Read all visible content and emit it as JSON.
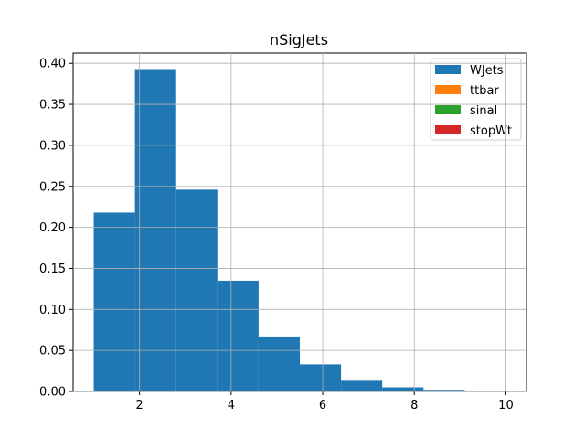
{
  "chart_data": {
    "type": "bar",
    "title": "nSigJets",
    "xlabel": "",
    "ylabel": "",
    "xlim": [
      0.55,
      10.45
    ],
    "ylim": [
      0,
      0.4125
    ],
    "grid": true,
    "legend_position": "top-right",
    "bin_edges": [
      1.0,
      1.9,
      2.8,
      3.7,
      4.6,
      5.5,
      6.4,
      7.3,
      8.2,
      9.1,
      10.0
    ],
    "xticks": [
      2,
      4,
      6,
      8,
      10
    ],
    "yticks": [
      0.0,
      0.05,
      0.1,
      0.15,
      0.2,
      0.25,
      0.3,
      0.35,
      0.4
    ],
    "ytick_labels": [
      "0.00",
      "0.05",
      "0.10",
      "0.15",
      "0.20",
      "0.25",
      "0.30",
      "0.35",
      "0.40"
    ],
    "series": [
      {
        "name": "WJets",
        "color": "#1f77b4",
        "values": [
          0.218,
          0.393,
          0.246,
          0.135,
          0.067,
          0.033,
          0.013,
          0.005,
          0.002,
          0.0
        ]
      },
      {
        "name": "ttbar",
        "color": "#ff7f0e",
        "values": [
          0,
          0,
          0,
          0,
          0,
          0,
          0,
          0,
          0,
          0
        ]
      },
      {
        "name": "sinal",
        "color": "#2ca02c",
        "values": [
          0,
          0,
          0,
          0,
          0,
          0,
          0,
          0,
          0,
          0
        ]
      },
      {
        "name": "stopWt",
        "color": "#d62728",
        "values": [
          0,
          0,
          0,
          0,
          0,
          0,
          0,
          0,
          0,
          0
        ]
      }
    ]
  }
}
